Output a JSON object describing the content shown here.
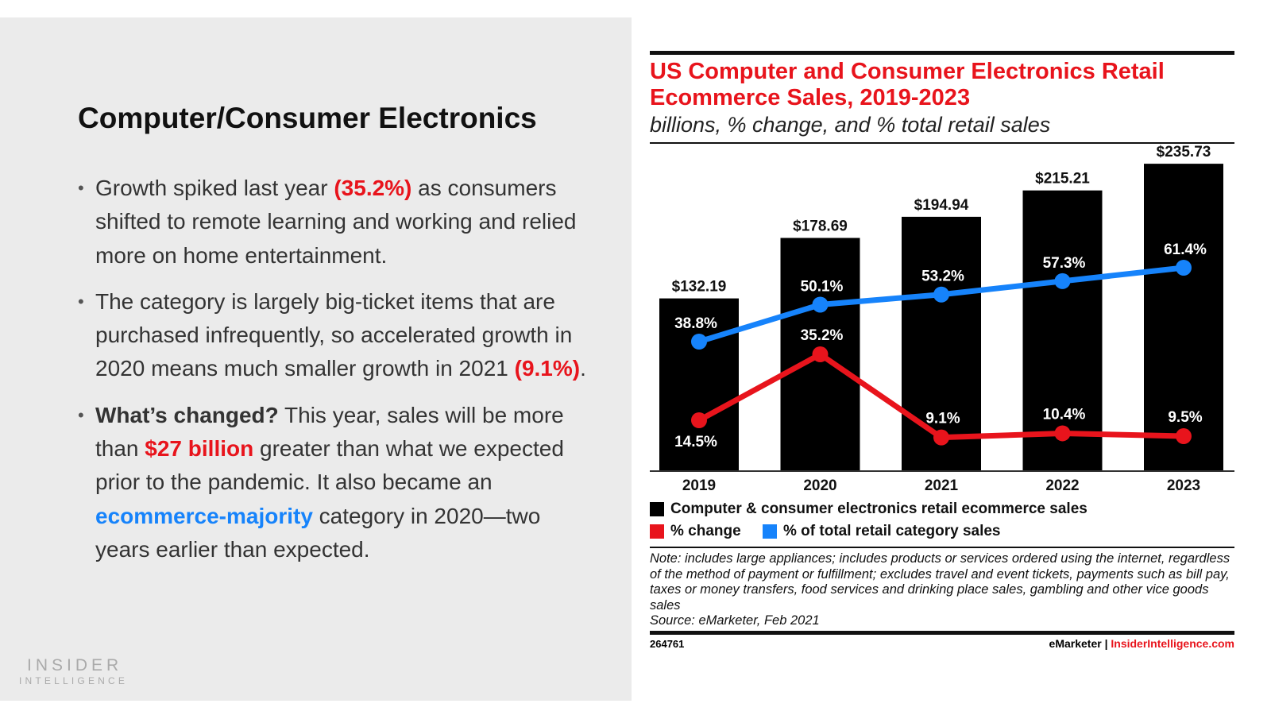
{
  "slide": {
    "title": "Computer/Consumer Electronics",
    "bullets": [
      {
        "pre": "Growth spiked last year ",
        "hl": "(35.2%)",
        "post": " as consumers shifted to remote learning and working and relied more on home entertainment."
      },
      {
        "pre": "The category is largely big-ticket items that are purchased infrequently, so accelerated growth in 2020 means much smaller growth in 2021 ",
        "hl": "(9.1%)",
        "post": "."
      },
      {
        "bold": "What’s changed?",
        "pre": " This year, sales will be more than ",
        "hl": "$27 billion",
        "mid": " greater than what we expected prior to the pandemic. It also became an ",
        "hl2": "ecommerce-majority",
        "post": " category in 2020—two years earlier than expected."
      }
    ],
    "logo": "INSIDER INTELLIGENCE"
  },
  "chart_data": {
    "type": "bar",
    "title": "US Computer and Consumer Electronics Retail Ecommerce Sales, 2019-2023",
    "subtitle": "billions, % change, and % total retail sales",
    "categories": [
      "2019",
      "2020",
      "2021",
      "2022",
      "2023"
    ],
    "series": [
      {
        "name": "Computer & consumer electronics retail ecommerce sales",
        "type": "bar",
        "color": "#000000",
        "values": [
          132.19,
          178.69,
          194.94,
          215.21,
          235.73
        ],
        "labels": [
          "$132.19",
          "$178.69",
          "$194.94",
          "$215.21",
          "$235.73"
        ]
      },
      {
        "name": "% change",
        "type": "line",
        "color": "#e8141c",
        "values": [
          14.5,
          35.2,
          9.1,
          10.4,
          9.5
        ],
        "labels": [
          "14.5%",
          "35.2%",
          "9.1%",
          "10.4%",
          "9.5%"
        ]
      },
      {
        "name": "% of total retail category sales",
        "type": "line",
        "color": "#1683fb",
        "values": [
          38.8,
          50.1,
          53.2,
          57.3,
          61.4
        ],
        "labels": [
          "38.8%",
          "50.1%",
          "53.2%",
          "57.3%",
          "61.4%"
        ]
      }
    ],
    "grid": false,
    "legend_placement": "bottom",
    "note": "Note: includes large appliances; includes products or services ordered using the internet, regardless of the method of payment or fulfillment; excludes travel and event tickets, payments such as bill pay, taxes or money transfers, food services and drinking place sales, gambling and other vice goods sales",
    "source": "Source: eMarketer, Feb 2021",
    "chart_id": "264761",
    "footer_brand": "eMarketer",
    "footer_sep": "|",
    "footer_site": "InsiderIntelligence.com"
  }
}
